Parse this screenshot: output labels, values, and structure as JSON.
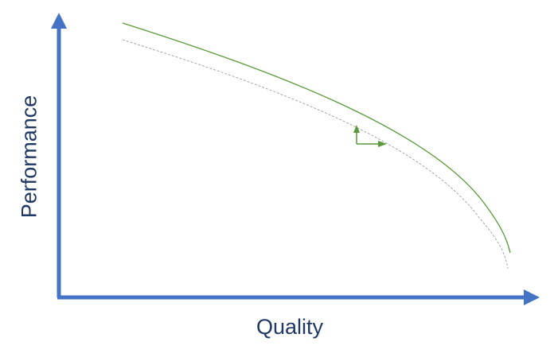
{
  "diagram": {
    "x_axis_label": "Quality",
    "y_axis_label": "Performance",
    "curves": [
      {
        "name": "improved-frontier",
        "style": "solid"
      },
      {
        "name": "baseline-frontier",
        "style": "dashed"
      }
    ],
    "improvement_arrows": [
      "up",
      "right"
    ]
  },
  "colors": {
    "axis": "#4472c4",
    "label_text": "#1f3864",
    "improved_curve": "#5a9a3a",
    "baseline_curve": "#a6a6a6"
  }
}
